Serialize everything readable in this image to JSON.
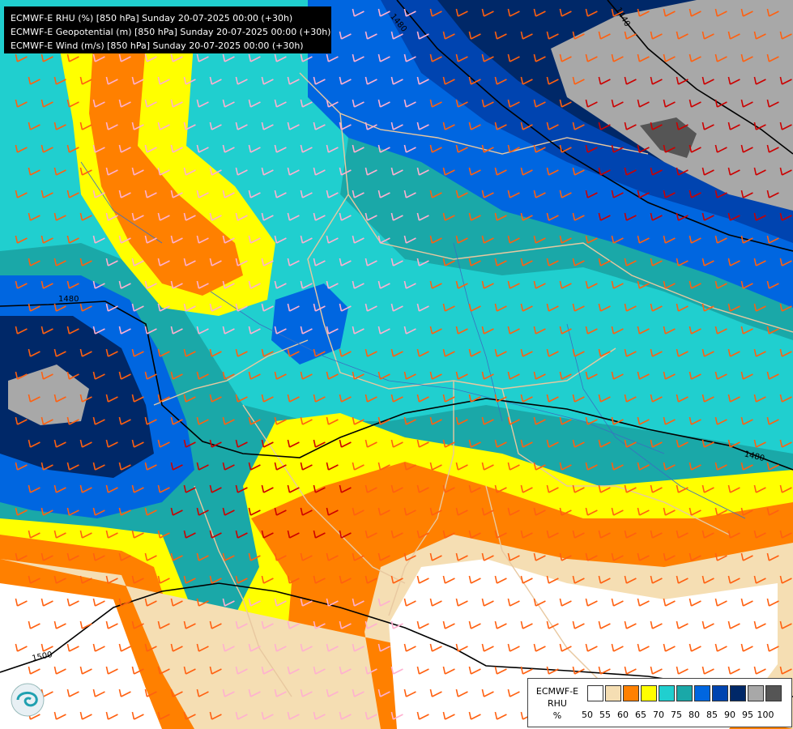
{
  "header": {
    "lines": [
      "ECMWF-E RHU (%) [850 hPa] Sunday 20-07-2025 00:00 (+30h)",
      "ECMWF-E Geopotential (m) [850 hPa] Sunday 20-07-2025 00:00 (+30h)",
      "ECMWF-E Wind (m/s) [850 hPa] Sunday 20-07-2025 00:00 (+30h)"
    ]
  },
  "legend": {
    "name_line1": "ECMWF-E",
    "name_line2": "RHU",
    "unit": "%",
    "ticks": [
      "50",
      "55",
      "60",
      "65",
      "70",
      "75",
      "80",
      "85",
      "90",
      "95",
      "100"
    ],
    "colors": [
      "#ffffff",
      "#f5deb3",
      "#ff8000",
      "#ffff00",
      "#20cfcf",
      "#1aa8a8",
      "#0066e0",
      "#0044b0",
      "#002868",
      "#a8a8a8",
      "#555555"
    ]
  },
  "contours": {
    "labels": [
      "1480",
      "1480",
      "1480",
      "1440",
      "1500"
    ]
  },
  "map_colors": {
    "borders": "#e8c8a0",
    "rivers": "#3a6fc0",
    "geopotential": "#000000",
    "wind_weak": "#ffb0d0",
    "wind_medium": "#ff6010",
    "wind_strong": "#cc0000"
  },
  "logo": {
    "icon": "ecmwf-logo-icon"
  }
}
